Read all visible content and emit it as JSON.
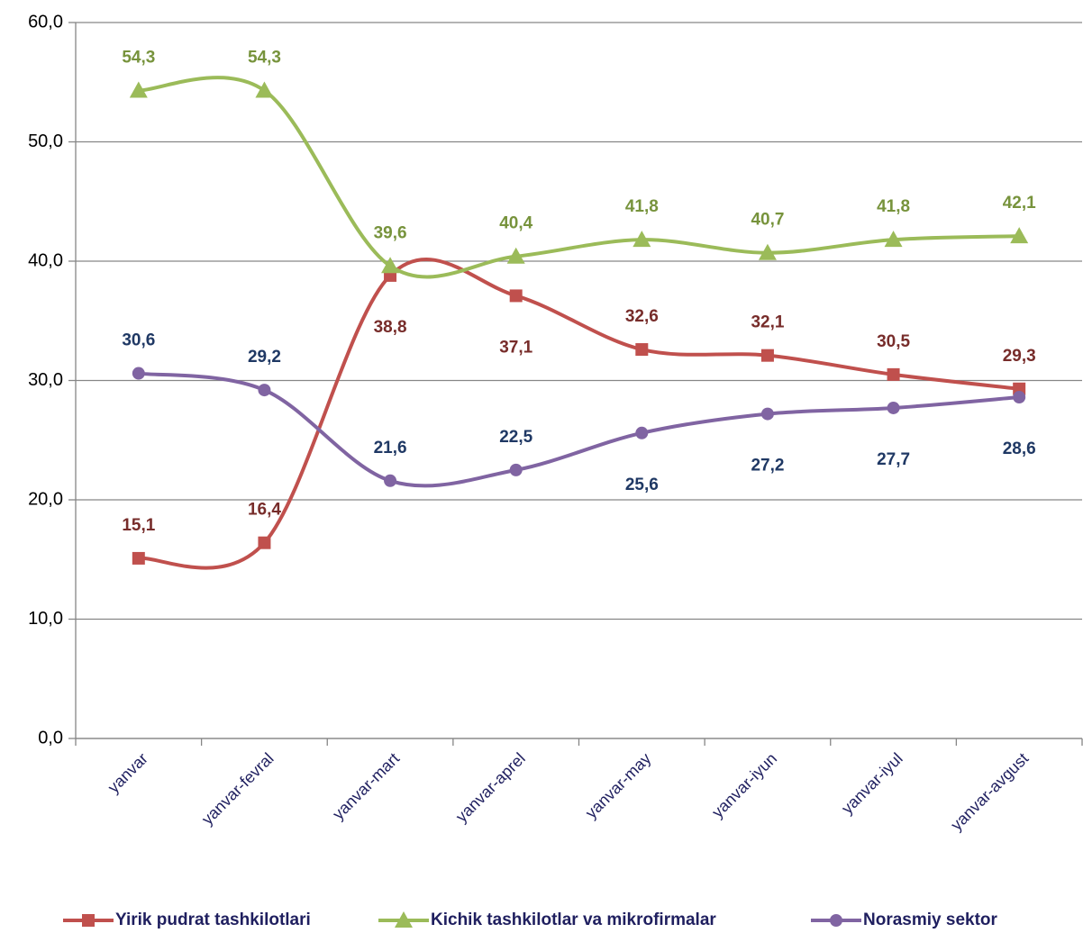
{
  "chart_data": {
    "type": "line",
    "categories": [
      "yanvar",
      "yanvar-fevral",
      "yanvar-mart",
      "yanvar-aprel",
      "yanvar-may",
      "yanvar-iyun",
      "yanvar-iyul",
      "yanvar-avgust"
    ],
    "series": [
      {
        "name": "Yirik pudrat tashkilotlari",
        "color": "#c0504d",
        "marker": "square",
        "label_color": "#772c2a",
        "values": [
          15.1,
          16.4,
          38.8,
          37.1,
          32.6,
          32.1,
          30.5,
          29.3
        ],
        "value_labels": [
          "15,1",
          "16,4",
          "38,8",
          "37,1",
          "32,6",
          "32,1",
          "30,5",
          "29,3"
        ]
      },
      {
        "name": "Kichik tashkilotlar va mikrofirmalar",
        "color": "#9bbb59",
        "marker": "triangle",
        "label_color": "#77933c",
        "values": [
          54.3,
          54.3,
          39.6,
          40.4,
          41.8,
          40.7,
          41.8,
          42.1
        ],
        "value_labels": [
          "54,3",
          "54,3",
          "39,6",
          "40,4",
          "41,8",
          "40,7",
          "41,8",
          "42,1"
        ]
      },
      {
        "name": "Norasmiy sektor",
        "color": "#8064a2",
        "marker": "circle",
        "label_color": "#1f3864",
        "values": [
          30.6,
          29.2,
          21.6,
          22.5,
          25.6,
          27.2,
          27.7,
          28.6
        ],
        "value_labels": [
          "30,6",
          "29,2",
          "21,6",
          "22,5",
          "25,6",
          "27,2",
          "27,7",
          "28,6"
        ]
      }
    ],
    "ylim": [
      0,
      60
    ],
    "yticks": [
      {
        "value": 0,
        "label": "0,0"
      },
      {
        "value": 10,
        "label": "10,0"
      },
      {
        "value": 20,
        "label": "20,0"
      },
      {
        "value": 30,
        "label": "30,0"
      },
      {
        "value": 40,
        "label": "40,0"
      },
      {
        "value": 50,
        "label": "50,0"
      },
      {
        "value": 60,
        "label": "60,0"
      }
    ],
    "grid": true,
    "legend": "bottom"
  }
}
